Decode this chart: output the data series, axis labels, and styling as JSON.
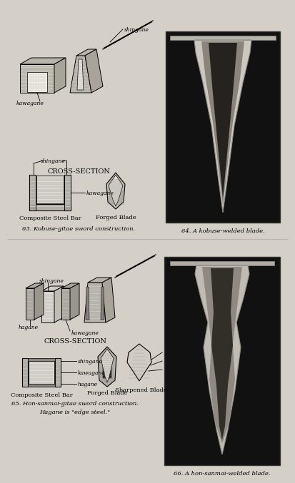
{
  "bg_color": "#d4d0c8",
  "title1": "CROSS-SECTION",
  "title2": "CROSS-SECTION",
  "label63": "63. Kobuse-gitae sword construction.",
  "label64": "64. A kobuse-welded blade.",
  "label65_line1": "65. Hon-sanmai-gitae sword construction.",
  "label65_line2": "Hagane is \"edge steel.\"",
  "label66": "66. A hon-sanmai-welded blade.",
  "caption_cs_bar": "Composite Steel Bar",
  "caption_forged": "Forged Blade",
  "caption_sharpened": "Sharpened Blade",
  "shingane_label": "shingane",
  "kawagane_label": "kawagane",
  "hagane_label": "hagane"
}
